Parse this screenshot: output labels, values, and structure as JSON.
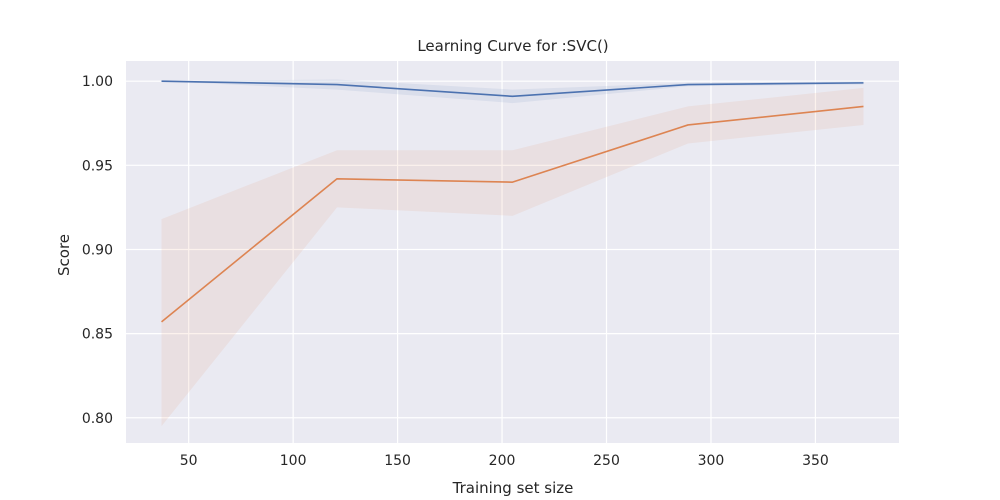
{
  "chart_data": {
    "type": "line",
    "title": "Learning Curve for :SVC()",
    "xlabel": "Training set size",
    "ylabel": "Score",
    "xlim": [
      20,
      390
    ],
    "ylim": [
      0.785,
      1.012
    ],
    "xticks": [
      50,
      100,
      150,
      200,
      250,
      300,
      350
    ],
    "xtick_labels": [
      "50",
      "100",
      "150",
      "200",
      "250",
      "300",
      "350"
    ],
    "yticks": [
      0.8,
      0.85,
      0.9,
      0.95,
      1.0
    ],
    "ytick_labels": [
      "0.80",
      "0.85",
      "0.90",
      "0.95",
      "1.00"
    ],
    "grid": true,
    "background": "#eaeaf2",
    "x": [
      37,
      121,
      205,
      289,
      373
    ],
    "series": [
      {
        "color": "#4c72b0",
        "fill_color": "#4c72b0",
        "values": [
          1.0,
          0.998,
          0.991,
          0.998,
          0.999
        ],
        "band_lower": [
          1.0,
          0.995,
          0.987,
          0.997,
          0.998
        ],
        "band_upper": [
          1.0,
          1.001,
          0.995,
          0.999,
          1.0
        ]
      },
      {
        "color": "#dd8452",
        "fill_color": "#dd8452",
        "values": [
          0.857,
          0.942,
          0.94,
          0.974,
          0.985
        ],
        "band_lower": [
          0.795,
          0.925,
          0.92,
          0.963,
          0.974
        ],
        "band_upper": [
          0.918,
          0.959,
          0.959,
          0.985,
          0.996
        ]
      }
    ]
  }
}
